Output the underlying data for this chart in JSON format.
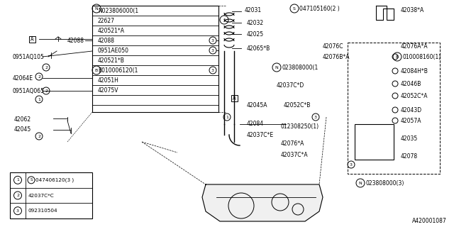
{
  "bg_color": "#ffffff",
  "line_color": "#000000",
  "text_color": "#000000",
  "diagram_id": "A420001087",
  "legend_items": [
    {
      "num": "1",
      "text": "S047406120(3 )"
    },
    {
      "num": "2",
      "text": "42037C*C"
    },
    {
      "num": "3",
      "text": "092310504"
    }
  ]
}
